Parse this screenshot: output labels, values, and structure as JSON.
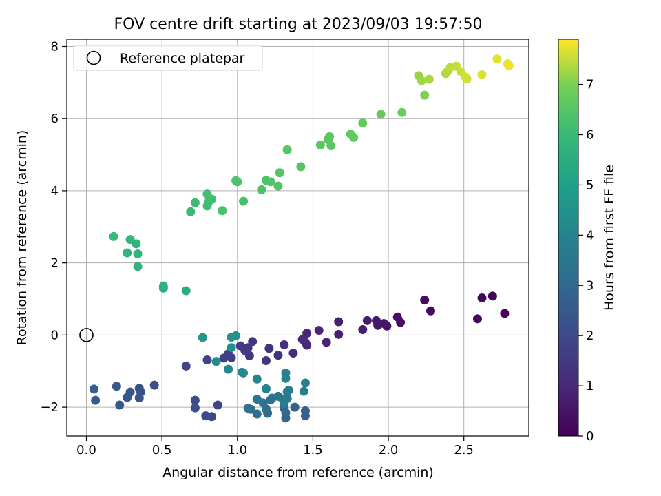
{
  "chart_data": {
    "type": "scatter",
    "title": "FOV centre drift starting at 2023/09/03 19:57:50",
    "xlabel": "Angular distance from reference (arcmin)",
    "ylabel": "Rotation from reference (arcmin)",
    "xlim": [
      -0.13,
      2.93
    ],
    "ylim": [
      -2.8,
      8.2
    ],
    "xticks": [
      0.0,
      0.5,
      1.0,
      1.5,
      2.0,
      2.5
    ],
    "xtick_labels": [
      "0.0",
      "0.5",
      "1.0",
      "1.5",
      "2.0",
      "2.5"
    ],
    "yticks": [
      -2,
      0,
      2,
      4,
      6,
      8
    ],
    "ytick_labels": [
      "−2",
      "0",
      "2",
      "4",
      "6",
      "8"
    ],
    "grid": true,
    "legend": {
      "placement": "top-left",
      "entries": [
        {
          "label": "Reference platepar",
          "marker": "open-circle",
          "color": "#000000"
        }
      ]
    },
    "reference_point": {
      "x": 0.0,
      "y": 0.0
    },
    "colorbar": {
      "label": "Hours from first FF file",
      "range": [
        0,
        7.9
      ],
      "ticks": [
        0,
        1,
        2,
        3,
        4,
        5,
        6,
        7
      ],
      "tick_labels": [
        "0",
        "1",
        "2",
        "3",
        "4",
        "5",
        "6",
        "7"
      ],
      "colormap": "viridis"
    },
    "points": [
      {
        "x": 2.77,
        "y": 0.6,
        "c": 0.05
      },
      {
        "x": 2.69,
        "y": 1.08,
        "c": 0.1
      },
      {
        "x": 2.62,
        "y": 1.03,
        "c": 0.15
      },
      {
        "x": 2.59,
        "y": 0.45,
        "c": 0.2
      },
      {
        "x": 2.28,
        "y": 0.67,
        "c": 0.25
      },
      {
        "x": 2.24,
        "y": 0.97,
        "c": 0.3
      },
      {
        "x": 2.08,
        "y": 0.35,
        "c": 0.35
      },
      {
        "x": 2.06,
        "y": 0.5,
        "c": 0.4
      },
      {
        "x": 1.99,
        "y": 0.25,
        "c": 0.45
      },
      {
        "x": 1.97,
        "y": 0.32,
        "c": 0.5
      },
      {
        "x": 1.93,
        "y": 0.27,
        "c": 0.55
      },
      {
        "x": 1.92,
        "y": 0.4,
        "c": 0.6
      },
      {
        "x": 1.86,
        "y": 0.4,
        "c": 0.65
      },
      {
        "x": 1.83,
        "y": 0.15,
        "c": 0.7
      },
      {
        "x": 1.67,
        "y": 0.37,
        "c": 0.75
      },
      {
        "x": 1.67,
        "y": 0.02,
        "c": 0.8
      },
      {
        "x": 1.59,
        "y": -0.2,
        "c": 0.85
      },
      {
        "x": 1.54,
        "y": 0.13,
        "c": 0.9
      },
      {
        "x": 1.46,
        "y": 0.05,
        "c": 0.95
      },
      {
        "x": 1.46,
        "y": -0.28,
        "c": 1.0
      },
      {
        "x": 1.45,
        "y": -0.2,
        "c": 1.05
      },
      {
        "x": 1.43,
        "y": -0.12,
        "c": 1.1
      },
      {
        "x": 1.37,
        "y": -0.5,
        "c": 1.15
      },
      {
        "x": 1.31,
        "y": -0.27,
        "c": 1.2
      },
      {
        "x": 1.27,
        "y": -0.56,
        "c": 1.25
      },
      {
        "x": 1.21,
        "y": -0.37,
        "c": 1.3
      },
      {
        "x": 1.19,
        "y": -0.71,
        "c": 1.35
      },
      {
        "x": 1.1,
        "y": -0.18,
        "c": 1.4
      },
      {
        "x": 1.08,
        "y": -0.57,
        "c": 1.45
      },
      {
        "x": 1.07,
        "y": -0.35,
        "c": 1.5
      },
      {
        "x": 1.05,
        "y": -0.43,
        "c": 1.55
      },
      {
        "x": 1.02,
        "y": -0.3,
        "c": 1.6
      },
      {
        "x": 0.96,
        "y": -0.63,
        "c": 1.65
      },
      {
        "x": 0.94,
        "y": -0.52,
        "c": 1.7
      },
      {
        "x": 0.91,
        "y": -0.64,
        "c": 1.75
      },
      {
        "x": 0.8,
        "y": -0.69,
        "c": 1.8
      },
      {
        "x": 0.66,
        "y": -0.86,
        "c": 1.85
      },
      {
        "x": 0.87,
        "y": -1.94,
        "c": 1.9
      },
      {
        "x": 0.83,
        "y": -2.26,
        "c": 1.95
      },
      {
        "x": 0.79,
        "y": -2.24,
        "c": 2.0
      },
      {
        "x": 0.72,
        "y": -1.81,
        "c": 2.05
      },
      {
        "x": 0.72,
        "y": -2.02,
        "c": 2.1
      },
      {
        "x": 0.45,
        "y": -1.39,
        "c": 2.15
      },
      {
        "x": 0.36,
        "y": -1.58,
        "c": 2.2
      },
      {
        "x": 0.35,
        "y": -1.48,
        "c": 2.25
      },
      {
        "x": 0.35,
        "y": -1.74,
        "c": 2.3
      },
      {
        "x": 0.29,
        "y": -1.58,
        "c": 2.35
      },
      {
        "x": 0.27,
        "y": -1.73,
        "c": 2.4
      },
      {
        "x": 0.22,
        "y": -1.94,
        "c": 2.45
      },
      {
        "x": 0.2,
        "y": -1.42,
        "c": 2.5
      },
      {
        "x": 0.06,
        "y": -1.81,
        "c": 2.55
      },
      {
        "x": 0.05,
        "y": -1.5,
        "c": 2.6
      },
      {
        "x": 1.45,
        "y": -2.24,
        "c": 2.7
      },
      {
        "x": 1.45,
        "y": -2.1,
        "c": 2.75
      },
      {
        "x": 1.38,
        "y": -2.0,
        "c": 2.8
      },
      {
        "x": 1.32,
        "y": -2.3,
        "c": 2.9
      },
      {
        "x": 1.32,
        "y": -2.15,
        "c": 2.95
      },
      {
        "x": 1.31,
        "y": -2.03,
        "c": 3.0
      },
      {
        "x": 1.2,
        "y": -2.17,
        "c": 3.05
      },
      {
        "x": 1.19,
        "y": -2.05,
        "c": 3.1
      },
      {
        "x": 1.13,
        "y": -2.19,
        "c": 3.15
      },
      {
        "x": 1.09,
        "y": -2.06,
        "c": 3.2
      },
      {
        "x": 1.07,
        "y": -2.03,
        "c": 3.25
      },
      {
        "x": 1.22,
        "y": -1.8,
        "c": 3.3
      },
      {
        "x": 1.23,
        "y": -1.75,
        "c": 3.35
      },
      {
        "x": 1.17,
        "y": -1.88,
        "c": 3.4
      },
      {
        "x": 1.13,
        "y": -1.78,
        "c": 3.45
      },
      {
        "x": 1.27,
        "y": -1.7,
        "c": 3.5
      },
      {
        "x": 1.3,
        "y": -1.77,
        "c": 3.55
      },
      {
        "x": 1.31,
        "y": -1.9,
        "c": 3.6
      },
      {
        "x": 1.33,
        "y": -1.76,
        "c": 3.65
      },
      {
        "x": 1.33,
        "y": -1.57,
        "c": 3.7
      },
      {
        "x": 1.34,
        "y": -1.53,
        "c": 3.75
      },
      {
        "x": 1.19,
        "y": -1.49,
        "c": 3.8
      },
      {
        "x": 1.44,
        "y": -1.56,
        "c": 3.85
      },
      {
        "x": 1.45,
        "y": -1.33,
        "c": 3.9
      },
      {
        "x": 1.32,
        "y": -1.2,
        "c": 3.95
      },
      {
        "x": 1.32,
        "y": -1.05,
        "c": 4.0
      },
      {
        "x": 1.13,
        "y": -1.22,
        "c": 4.05
      },
      {
        "x": 1.04,
        "y": -1.05,
        "c": 4.1
      },
      {
        "x": 1.03,
        "y": -1.03,
        "c": 4.15
      },
      {
        "x": 0.94,
        "y": -0.95,
        "c": 4.2
      },
      {
        "x": 0.86,
        "y": -0.73,
        "c": 4.3
      },
      {
        "x": 0.96,
        "y": -0.35,
        "c": 4.4
      },
      {
        "x": 0.96,
        "y": -0.06,
        "c": 4.5
      },
      {
        "x": 0.99,
        "y": -0.02,
        "c": 4.6
      },
      {
        "x": 0.77,
        "y": -0.07,
        "c": 4.7
      },
      {
        "x": 0.66,
        "y": 1.23,
        "c": 5.5
      },
      {
        "x": 0.51,
        "y": 1.3,
        "c": 5.6
      },
      {
        "x": 0.51,
        "y": 1.36,
        "c": 5.65
      },
      {
        "x": 0.34,
        "y": 1.9,
        "c": 5.7
      },
      {
        "x": 0.34,
        "y": 2.25,
        "c": 5.75
      },
      {
        "x": 0.27,
        "y": 2.28,
        "c": 5.8
      },
      {
        "x": 0.33,
        "y": 2.53,
        "c": 5.85
      },
      {
        "x": 0.29,
        "y": 2.65,
        "c": 5.9
      },
      {
        "x": 0.18,
        "y": 2.73,
        "c": 5.95
      },
      {
        "x": 0.69,
        "y": 3.42,
        "c": 6.0
      },
      {
        "x": 0.72,
        "y": 3.67,
        "c": 6.05
      },
      {
        "x": 0.8,
        "y": 3.58,
        "c": 6.1
      },
      {
        "x": 0.81,
        "y": 3.7,
        "c": 6.15
      },
      {
        "x": 0.83,
        "y": 3.77,
        "c": 6.2
      },
      {
        "x": 0.8,
        "y": 3.91,
        "c": 6.25
      },
      {
        "x": 0.9,
        "y": 3.45,
        "c": 6.3
      },
      {
        "x": 1.04,
        "y": 3.71,
        "c": 6.3
      },
      {
        "x": 0.99,
        "y": 4.28,
        "c": 6.35
      },
      {
        "x": 1.0,
        "y": 4.25,
        "c": 6.35
      },
      {
        "x": 1.16,
        "y": 4.03,
        "c": 6.4
      },
      {
        "x": 1.19,
        "y": 4.29,
        "c": 6.4
      },
      {
        "x": 1.22,
        "y": 4.25,
        "c": 6.45
      },
      {
        "x": 1.27,
        "y": 4.13,
        "c": 6.45
      },
      {
        "x": 1.28,
        "y": 4.5,
        "c": 6.5
      },
      {
        "x": 1.42,
        "y": 4.67,
        "c": 6.5
      },
      {
        "x": 1.33,
        "y": 5.14,
        "c": 6.55
      },
      {
        "x": 1.55,
        "y": 5.27,
        "c": 6.55
      },
      {
        "x": 1.6,
        "y": 5.42,
        "c": 6.6
      },
      {
        "x": 1.61,
        "y": 5.5,
        "c": 6.6
      },
      {
        "x": 1.62,
        "y": 5.25,
        "c": 6.6
      },
      {
        "x": 1.75,
        "y": 5.57,
        "c": 6.65
      },
      {
        "x": 1.77,
        "y": 5.48,
        "c": 6.65
      },
      {
        "x": 1.83,
        "y": 5.88,
        "c": 6.7
      },
      {
        "x": 1.95,
        "y": 6.12,
        "c": 6.75
      },
      {
        "x": 2.09,
        "y": 6.17,
        "c": 6.8
      },
      {
        "x": 2.24,
        "y": 6.65,
        "c": 7.0
      },
      {
        "x": 2.2,
        "y": 7.19,
        "c": 7.2
      },
      {
        "x": 2.22,
        "y": 7.05,
        "c": 7.25
      },
      {
        "x": 2.27,
        "y": 7.09,
        "c": 7.3
      },
      {
        "x": 2.38,
        "y": 7.25,
        "c": 7.35
      },
      {
        "x": 2.39,
        "y": 7.3,
        "c": 7.4
      },
      {
        "x": 2.41,
        "y": 7.42,
        "c": 7.45
      },
      {
        "x": 2.45,
        "y": 7.45,
        "c": 7.5
      },
      {
        "x": 2.48,
        "y": 7.3,
        "c": 7.55
      },
      {
        "x": 2.51,
        "y": 7.15,
        "c": 7.6
      },
      {
        "x": 2.52,
        "y": 7.1,
        "c": 7.6
      },
      {
        "x": 2.62,
        "y": 7.22,
        "c": 7.65
      },
      {
        "x": 2.72,
        "y": 7.65,
        "c": 7.7
      },
      {
        "x": 2.79,
        "y": 7.52,
        "c": 7.75
      },
      {
        "x": 2.8,
        "y": 7.47,
        "c": 7.8
      }
    ]
  }
}
